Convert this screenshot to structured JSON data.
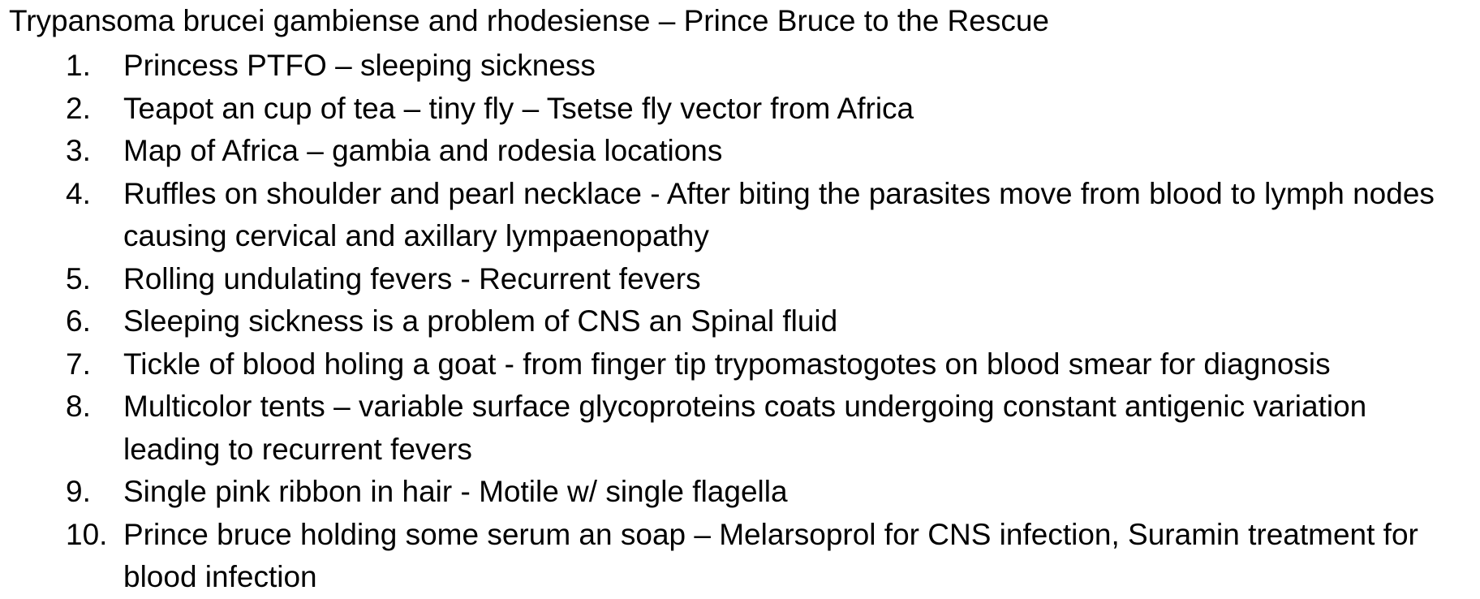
{
  "document": {
    "title": "Trypansoma brucei gambiense and rhodesiense – Prince Bruce to the Rescue",
    "items": [
      {
        "number": "1.",
        "text": "Princess PTFO – sleeping sickness"
      },
      {
        "number": "2.",
        "text": "Teapot an cup of tea – tiny fly – Tsetse fly vector from Africa"
      },
      {
        "number": "3.",
        "text": "Map of Africa – gambia and rodesia locations"
      },
      {
        "number": "4.",
        "text": "Ruffles on shoulder and pearl necklace - After biting the parasites move from blood to lymph nodes causing cervical and axillary lympaenopathy"
      },
      {
        "number": "5.",
        "text": "Rolling undulating fevers - Recurrent fevers"
      },
      {
        "number": "6.",
        "text": "Sleeping sickness is a problem of CNS an Spinal fluid"
      },
      {
        "number": "7.",
        "text": "Tickle of blood holing a goat -  from finger tip trypomastogotes on blood smear for diagnosis"
      },
      {
        "number": "8.",
        "text": "Multicolor tents – variable surface glycoproteins coats undergoing constant antigenic variation leading to recurrent fevers"
      },
      {
        "number": "9.",
        "text": "Single pink ribbon in hair - Motile w/ single flagella"
      },
      {
        "number": "10.",
        "text": "Prince bruce holding some serum an soap – Melarsoprol for CNS infection, Suramin treatment for blood infection"
      }
    ]
  }
}
